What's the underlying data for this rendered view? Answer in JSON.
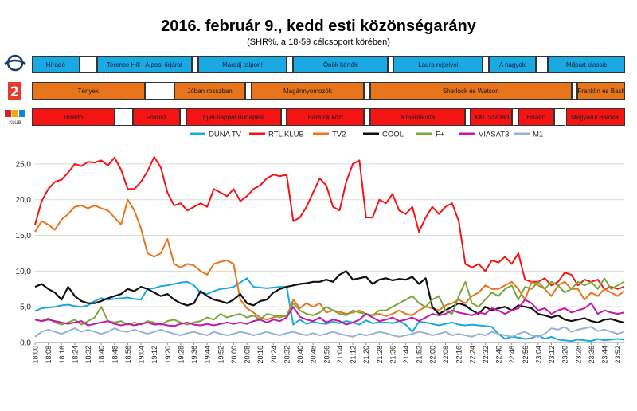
{
  "title": "2016. február 9., kedd esti közönségarány",
  "subtitle": "(SHR%, a 18-59 célcsoport körében)",
  "channels": {
    "duna": {
      "color": "#1aa9e0",
      "programs": [
        {
          "label": "Híradó",
          "start": 0,
          "end": 8
        },
        {
          "label": "",
          "start": 8,
          "end": 11
        },
        {
          "label": "Terence Hill - Alpesi őrjárat",
          "start": 11,
          "end": 27
        },
        {
          "label": "",
          "start": 27,
          "end": 28
        },
        {
          "label": "Maradj talpon!",
          "start": 28,
          "end": 43
        },
        {
          "label": "",
          "start": 43,
          "end": 44
        },
        {
          "label": "Önök kérték",
          "start": 44,
          "end": 60
        },
        {
          "label": "",
          "start": 60,
          "end": 61
        },
        {
          "label": "Laura rejtélyei",
          "start": 61,
          "end": 76
        },
        {
          "label": "",
          "start": 76,
          "end": 77
        },
        {
          "label": "A nagyok",
          "start": 77,
          "end": 85
        },
        {
          "label": "",
          "start": 85,
          "end": 87
        },
        {
          "label": "Műpart classic",
          "start": 87,
          "end": 100
        }
      ]
    },
    "tv2": {
      "color": "#e8741c",
      "programs": [
        {
          "label": "Tények",
          "start": 0,
          "end": 19
        },
        {
          "label": "",
          "start": 19,
          "end": 24
        },
        {
          "label": "Jóban rosszban",
          "start": 24,
          "end": 36
        },
        {
          "label": "",
          "start": 36,
          "end": 37
        },
        {
          "label": "Magánnyomozók",
          "start": 37,
          "end": 56
        },
        {
          "label": "",
          "start": 56,
          "end": 57
        },
        {
          "label": "Sherlock és Watson",
          "start": 57,
          "end": 91
        },
        {
          "label": "",
          "start": 91,
          "end": 92
        },
        {
          "label": "Franklin és Bash",
          "start": 92,
          "end": 100
        }
      ]
    },
    "rtl": {
      "color": "#f41414",
      "programs": [
        {
          "label": "Híradó",
          "start": 0,
          "end": 14
        },
        {
          "label": "",
          "start": 14,
          "end": 17
        },
        {
          "label": "Fókusz",
          "start": 17,
          "end": 25
        },
        {
          "label": "",
          "start": 25,
          "end": 26
        },
        {
          "label": "Éjjel-nappal Budapest",
          "start": 26,
          "end": 42
        },
        {
          "label": "",
          "start": 42,
          "end": 43
        },
        {
          "label": "Barátok közt",
          "start": 43,
          "end": 56
        },
        {
          "label": "",
          "start": 56,
          "end": 57
        },
        {
          "label": "A mentalista",
          "start": 57,
          "end": 73
        },
        {
          "label": "",
          "start": 73,
          "end": 74
        },
        {
          "label": "XXI. Század",
          "start": 74,
          "end": 81
        },
        {
          "label": "",
          "start": 81,
          "end": 82
        },
        {
          "label": "Híradó",
          "start": 82,
          "end": 88
        },
        {
          "label": "",
          "start": 88,
          "end": 90
        },
        {
          "label": "Magyarul Balóval",
          "start": 90,
          "end": 100
        }
      ]
    }
  },
  "chart_data": {
    "type": "line",
    "ylim": [
      0,
      27
    ],
    "yticks": [
      "0,0",
      "5,0",
      "10,0",
      "15,0",
      "20,0",
      "25,0"
    ],
    "ytick_values": [
      0,
      5,
      10,
      15,
      20,
      25
    ],
    "grid": true,
    "legend_position": "top",
    "x": [
      "18:00",
      "18:04",
      "18:08",
      "18:12",
      "18:16",
      "18:20",
      "18:24",
      "18:28",
      "18:32",
      "18:36",
      "18:40",
      "18:44",
      "18:48",
      "18:52",
      "18:56",
      "19:00",
      "19:04",
      "19:08",
      "19:12",
      "19:16",
      "19:20",
      "19:24",
      "19:28",
      "19:32",
      "19:36",
      "19:40",
      "19:44",
      "19:48",
      "19:52",
      "19:56",
      "20:00",
      "20:04",
      "20:08",
      "20:12",
      "20:16",
      "20:20",
      "20:24",
      "20:28",
      "20:32",
      "20:36",
      "20:40",
      "20:44",
      "20:48",
      "20:52",
      "20:56",
      "21:00",
      "21:04",
      "21:08",
      "21:12",
      "21:16",
      "21:20",
      "21:24",
      "21:28",
      "21:32",
      "21:36",
      "21:40",
      "21:44",
      "21:48",
      "21:52",
      "21:56",
      "22:00",
      "22:04",
      "22:08",
      "22:12",
      "22:16",
      "22:20",
      "22:24",
      "22:28",
      "22:32",
      "22:36",
      "22:40",
      "22:44",
      "22:48",
      "22:52",
      "22:56",
      "23:00",
      "23:04",
      "23:08",
      "23:12",
      "23:16",
      "23:20",
      "23:24",
      "23:28",
      "23:32",
      "23:36",
      "23:40",
      "23:44",
      "23:48",
      "23:52",
      "23:56"
    ],
    "xtick_labels": [
      "18:00",
      "18:08",
      "18:16",
      "18:24",
      "18:32",
      "18:40",
      "18:48",
      "18:56",
      "19:04",
      "19:12",
      "19:20",
      "19:28",
      "19:36",
      "19:44",
      "19:52",
      "20:00",
      "20:08",
      "20:16",
      "20:24",
      "20:32",
      "20:40",
      "20:48",
      "20:56",
      "21:04",
      "21:12",
      "21:20",
      "21:28",
      "21:36",
      "21:44",
      "21:52",
      "22:00",
      "22:08",
      "22:16",
      "22:24",
      "22:32",
      "22:40",
      "22:48",
      "22:56",
      "23:04",
      "23:12",
      "23:20",
      "23:28",
      "23:36",
      "23:44",
      "23:52"
    ],
    "series": [
      {
        "name": "DUNA TV",
        "color": "#1aa9e0",
        "values": [
          4.4,
          4.8,
          4.9,
          5.0,
          5.2,
          5.3,
          5.1,
          5.0,
          5.2,
          5.8,
          6.2,
          6.0,
          6.1,
          6.2,
          6.3,
          6.1,
          6.0,
          7.5,
          7.6,
          7.9,
          8.0,
          8.2,
          8.4,
          8.5,
          8.0,
          7.0,
          6.8,
          7.2,
          7.5,
          7.6,
          7.8,
          8.4,
          9.0,
          7.8,
          7.7,
          7.6,
          7.7,
          7.8,
          7.8,
          2.5,
          3.2,
          2.6,
          2.9,
          2.7,
          2.6,
          2.9,
          2.7,
          3.0,
          2.8,
          2.5,
          3.1,
          2.7,
          2.8,
          2.8,
          2.7,
          3.0,
          2.5,
          1.5,
          2.9,
          2.8,
          2.6,
          2.4,
          2.6,
          2.8,
          2.5,
          2.4,
          2.5,
          2.4,
          2.3,
          2.2,
          1.2,
          0.5,
          0.8,
          0.7,
          0.5,
          0.6,
          1.0,
          0.5,
          0.8,
          0.4,
          0.3,
          0.2,
          0.4,
          0.3,
          0.2,
          0.5,
          0.3,
          0.4,
          0.5,
          0.4
        ]
      },
      {
        "name": "RTL KLUB",
        "color": "#f41414",
        "values": [
          16.5,
          19.8,
          21.5,
          22.5,
          22.8,
          23.8,
          25.0,
          24.7,
          25.3,
          25.2,
          25.5,
          24.8,
          25.9,
          24.2,
          21.5,
          21.5,
          22.5,
          24.0,
          26.0,
          24.5,
          21.0,
          19.2,
          19.5,
          18.5,
          19.0,
          19.5,
          19.0,
          21.5,
          21.0,
          20.5,
          21.5,
          19.8,
          20.5,
          21.5,
          22.0,
          23.0,
          23.5,
          23.3,
          23.5,
          17.0,
          17.5,
          19.0,
          21.0,
          23.0,
          22.0,
          19.0,
          18.5,
          22.5,
          25.0,
          25.5,
          17.5,
          17.5,
          20.0,
          19.5,
          20.8,
          18.5,
          18.0,
          19.0,
          15.5,
          17.5,
          19.0,
          18.0,
          19.0,
          19.5,
          17.0,
          11.0,
          10.5,
          11.0,
          10.0,
          11.5,
          11.2,
          12.0,
          11.0,
          12.5,
          8.8,
          8.5,
          8.5,
          9.0,
          8.0,
          8.5,
          9.8,
          9.5,
          8.0,
          8.8,
          8.5,
          8.8,
          7.5,
          7.8,
          7.5,
          7.8
        ]
      },
      {
        "name": "TV2",
        "color": "#e8741c",
        "values": [
          15.5,
          17.0,
          16.5,
          15.8,
          17.2,
          18.0,
          19.0,
          19.2,
          18.8,
          19.2,
          18.8,
          18.5,
          17.5,
          16.5,
          20.0,
          18.5,
          16.0,
          12.5,
          12.0,
          12.5,
          14.5,
          11.0,
          10.5,
          11.0,
          10.8,
          10.0,
          9.5,
          11.0,
          11.3,
          11.5,
          11.0,
          6.0,
          4.8,
          4.2,
          3.5,
          3.2,
          3.5,
          3.8,
          3.6,
          6.0,
          4.8,
          5.5,
          5.0,
          5.5,
          4.2,
          4.5,
          4.3,
          4.0,
          4.2,
          4.5,
          4.0,
          3.8,
          4.0,
          3.7,
          4.0,
          4.5,
          4.0,
          3.8,
          4.5,
          5.0,
          4.8,
          4.5,
          5.2,
          5.5,
          6.0,
          5.5,
          6.5,
          7.0,
          8.0,
          7.5,
          7.5,
          8.0,
          8.5,
          7.5,
          6.0,
          8.5,
          8.0,
          7.5,
          6.5,
          8.0,
          8.5,
          7.5,
          7.5,
          6.0,
          7.0,
          6.5,
          7.5,
          7.0,
          6.5,
          7.2
        ]
      },
      {
        "name": "COOL",
        "color": "#111111",
        "values": [
          7.8,
          8.2,
          7.5,
          7.0,
          6.0,
          7.8,
          6.5,
          5.8,
          5.5,
          5.5,
          5.8,
          6.2,
          6.5,
          6.8,
          7.5,
          7.2,
          7.8,
          7.5,
          7.0,
          6.5,
          6.8,
          6.0,
          5.5,
          5.2,
          5.5,
          7.2,
          6.5,
          6.0,
          5.8,
          5.5,
          6.0,
          6.8,
          5.5,
          5.2,
          5.8,
          6.0,
          7.0,
          7.5,
          7.8,
          8.0,
          8.2,
          8.3,
          8.5,
          8.5,
          8.8,
          8.5,
          9.5,
          10.0,
          8.8,
          9.0,
          9.2,
          8.2,
          8.8,
          9.0,
          8.7,
          8.9,
          8.8,
          9.2,
          8.2,
          9.0,
          5.0,
          4.0,
          4.5,
          5.0,
          5.5,
          5.2,
          4.5,
          4.0,
          5.0,
          4.5,
          4.8,
          5.0,
          4.5,
          5.2,
          5.0,
          4.8,
          4.0,
          3.8,
          3.5,
          3.8,
          3.2,
          3.0,
          3.2,
          3.4,
          3.0,
          2.8,
          3.2,
          3.3,
          3.0,
          2.8
        ]
      },
      {
        "name": "F+",
        "color": "#78a83c",
        "values": [
          3.2,
          3.0,
          3.4,
          2.8,
          2.5,
          2.8,
          3.2,
          2.5,
          3.0,
          3.5,
          5.0,
          3.0,
          2.8,
          3.0,
          2.5,
          2.8,
          2.5,
          3.0,
          2.8,
          2.5,
          3.0,
          3.2,
          2.8,
          2.5,
          2.8,
          3.0,
          3.5,
          3.2,
          4.0,
          3.5,
          3.8,
          4.0,
          3.5,
          3.8,
          3.2,
          4.0,
          3.8,
          3.5,
          3.8,
          5.5,
          4.5,
          4.0,
          3.8,
          4.2,
          5.0,
          4.5,
          4.0,
          3.8,
          4.5,
          4.2,
          4.0,
          3.8,
          4.5,
          4.5,
          5.0,
          5.5,
          6.0,
          6.5,
          5.5,
          5.0,
          6.0,
          6.5,
          4.5,
          4.0,
          6.5,
          8.5,
          5.5,
          5.0,
          6.0,
          7.0,
          6.5,
          7.5,
          8.0,
          6.0,
          7.8,
          7.5,
          8.5,
          7.5,
          8.5,
          8.0,
          7.0,
          7.5,
          8.5,
          8.0,
          8.5,
          7.5,
          9.0,
          7.5,
          8.0,
          8.5
        ]
      },
      {
        "name": "VIASAT3",
        "color": "#c418a8",
        "values": [
          3.2,
          3.0,
          3.2,
          3.0,
          2.8,
          2.6,
          2.8,
          3.0,
          2.4,
          2.6,
          2.8,
          3.0,
          2.6,
          2.4,
          2.6,
          2.4,
          2.6,
          2.8,
          2.5,
          2.6,
          2.4,
          2.3,
          2.6,
          2.8,
          2.5,
          2.4,
          2.6,
          2.4,
          2.6,
          2.8,
          2.6,
          2.8,
          2.6,
          3.0,
          3.2,
          2.8,
          3.2,
          3.0,
          3.5,
          5.0,
          3.6,
          3.2,
          3.0,
          3.5,
          2.8,
          3.2,
          3.0,
          2.5,
          2.8,
          3.2,
          4.0,
          3.5,
          3.0,
          3.2,
          3.5,
          3.0,
          3.2,
          3.5,
          3.0,
          3.5,
          4.0,
          3.8,
          4.0,
          4.5,
          4.2,
          4.0,
          3.8,
          4.2,
          4.0,
          4.8,
          4.5,
          4.0,
          4.5,
          4.8,
          6.0,
          5.5,
          4.5,
          4.8,
          4.0,
          4.5,
          4.8,
          4.2,
          4.5,
          4.8,
          5.5,
          4.0,
          4.5,
          4.2,
          4.0,
          4.2
        ]
      },
      {
        "name": "M1",
        "color": "#98b2d4",
        "values": [
          0.8,
          1.5,
          1.8,
          1.5,
          1.2,
          1.6,
          2.0,
          1.5,
          1.8,
          1.5,
          1.2,
          1.5,
          2.0,
          1.6,
          1.5,
          1.8,
          1.5,
          1.2,
          1.5,
          1.8,
          1.5,
          1.2,
          1.0,
          1.3,
          1.5,
          1.2,
          1.0,
          1.5,
          1.2,
          1.0,
          1.2,
          1.5,
          1.3,
          1.0,
          1.2,
          1.5,
          1.2,
          1.0,
          1.3,
          1.5,
          1.2,
          1.0,
          1.3,
          1.0,
          1.2,
          1.5,
          1.2,
          1.0,
          0.8,
          1.2,
          1.0,
          1.2,
          1.5,
          1.3,
          1.0,
          0.8,
          1.0,
          1.2,
          1.5,
          1.3,
          1.0,
          1.2,
          1.5,
          1.0,
          1.2,
          1.0,
          0.8,
          1.2,
          1.0,
          1.5,
          1.2,
          1.0,
          0.8,
          1.2,
          1.5,
          1.0,
          0.8,
          1.2,
          2.0,
          1.8,
          2.2,
          1.5,
          1.8,
          2.0,
          2.2,
          1.6,
          1.8,
          1.5,
          1.2,
          1.5
        ]
      }
    ]
  }
}
